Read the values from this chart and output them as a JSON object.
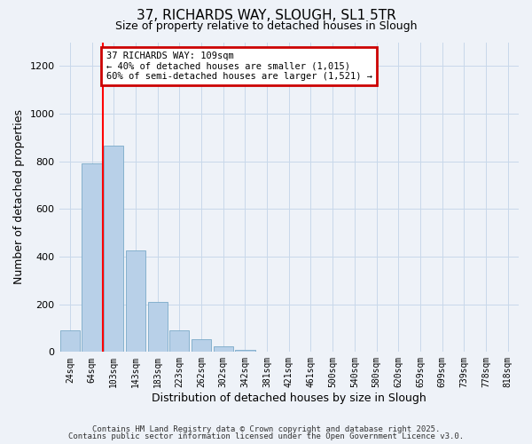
{
  "title": "37, RICHARDS WAY, SLOUGH, SL1 5TR",
  "subtitle": "Size of property relative to detached houses in Slough",
  "xlabel": "Distribution of detached houses by size in Slough",
  "ylabel": "Number of detached properties",
  "bar_labels": [
    "24sqm",
    "64sqm",
    "103sqm",
    "143sqm",
    "183sqm",
    "223sqm",
    "262sqm",
    "302sqm",
    "342sqm",
    "381sqm",
    "421sqm",
    "461sqm",
    "500sqm",
    "540sqm",
    "580sqm",
    "620sqm",
    "659sqm",
    "699sqm",
    "739sqm",
    "778sqm",
    "818sqm"
  ],
  "bar_values": [
    90,
    790,
    865,
    425,
    210,
    90,
    52,
    22,
    8,
    1,
    0,
    0,
    0,
    0,
    0,
    0,
    0,
    0,
    0,
    0,
    0
  ],
  "bar_color": "#b8d0e8",
  "bar_edge_color": "#7aaac8",
  "grid_color": "#c8d8ea",
  "bg_color": "#eef2f8",
  "red_line_x": 1.5,
  "annotation_line1": "37 RICHARDS WAY: 109sqm",
  "annotation_line2": "← 40% of detached houses are smaller (1,015)",
  "annotation_line3": "60% of semi-detached houses are larger (1,521) →",
  "annotation_box_color": "#ffffff",
  "annotation_box_edge": "#cc0000",
  "ylim": [
    0,
    1300
  ],
  "yticks": [
    0,
    200,
    400,
    600,
    800,
    1000,
    1200
  ],
  "footnote1": "Contains HM Land Registry data © Crown copyright and database right 2025.",
  "footnote2": "Contains public sector information licensed under the Open Government Licence v3.0."
}
